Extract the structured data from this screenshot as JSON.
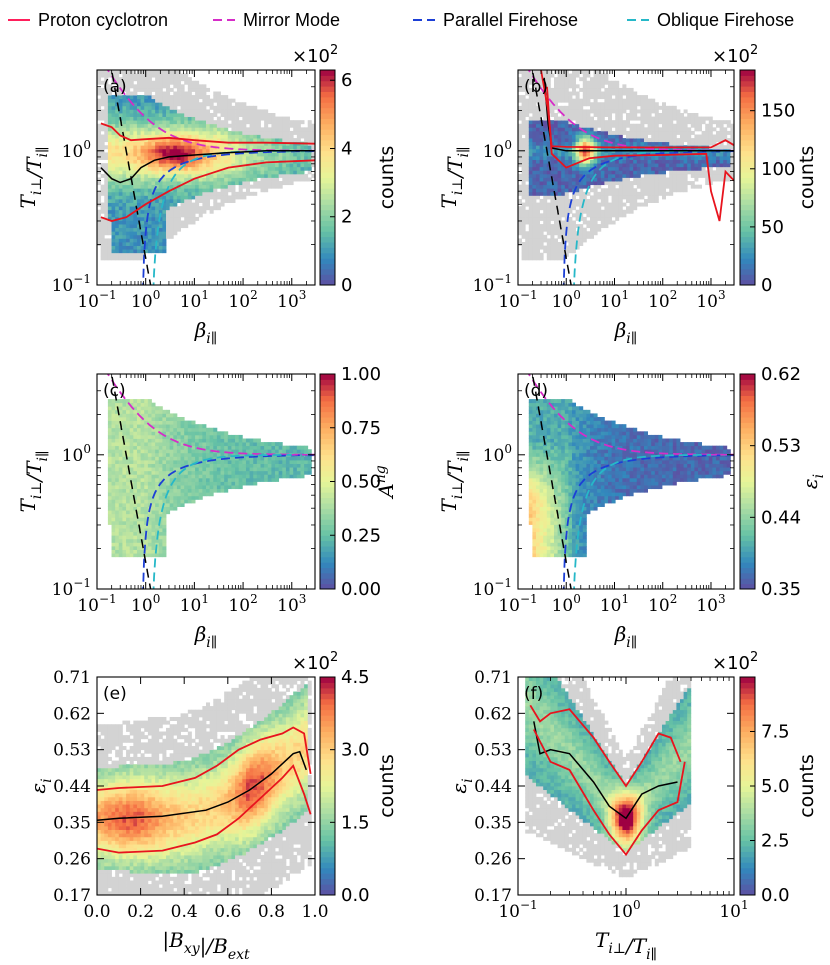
{
  "legend": [
    {
      "label": "Proton cyclotron",
      "color": "#ff1f5b"
    },
    {
      "label": "Mirror Mode",
      "color": "#d62cc8"
    },
    {
      "label": "Parallel Firehose",
      "color": "#1c3fd6"
    },
    {
      "label": "Oblique Firehose",
      "color": "#26b8c8"
    }
  ],
  "colors": {
    "median": "#000000",
    "percentile": "#e8141e",
    "background": "#d3d3d3"
  },
  "chart_data": [
    {
      "panel": "(a)",
      "type": "heatmap",
      "xscale": "log",
      "yscale": "log",
      "xlim": [
        0.1,
        3000
      ],
      "ylim": [
        0.1,
        4
      ],
      "xticks": [
        {
          "v": 0.1,
          "t": "10^-1"
        },
        {
          "v": 1,
          "t": "10^0"
        },
        {
          "v": 10,
          "t": "10^1"
        },
        {
          "v": 100,
          "t": "10^2"
        },
        {
          "v": 1000,
          "t": "10^3"
        }
      ],
      "yticks": [
        {
          "v": 0.1,
          "t": "10^-1"
        },
        {
          "v": 1,
          "t": "10^0"
        }
      ],
      "xlabel": "β_i∥",
      "ylabel": "T_i⊥/T_i∥",
      "cmap": "spectral",
      "cbar_label": "counts",
      "cbar_range": [
        0,
        6.3
      ],
      "cbar_ticks": [
        "0",
        "2",
        "4",
        "6"
      ],
      "cbar_mult": "×10²",
      "lines": [
        {
          "kind": "median",
          "pts": [
            [
              0.12,
              0.75
            ],
            [
              0.2,
              0.62
            ],
            [
              0.3,
              0.58
            ],
            [
              0.5,
              0.62
            ],
            [
              0.8,
              0.75
            ],
            [
              1.5,
              0.85
            ],
            [
              3,
              0.9
            ],
            [
              10,
              0.93
            ],
            [
              50,
              0.97
            ],
            [
              300,
              1.0
            ],
            [
              3000,
              1.0
            ]
          ]
        },
        {
          "kind": "percentile",
          "pts": [
            [
              0.12,
              1.6
            ],
            [
              0.2,
              1.5
            ],
            [
              0.3,
              1.3
            ],
            [
              0.5,
              1.2
            ],
            [
              1,
              1.22
            ],
            [
              3,
              1.25
            ],
            [
              10,
              1.2
            ],
            [
              50,
              1.15
            ],
            [
              300,
              1.15
            ],
            [
              3000,
              1.13
            ]
          ]
        },
        {
          "kind": "percentile",
          "pts": [
            [
              0.12,
              0.32
            ],
            [
              0.2,
              0.3
            ],
            [
              0.4,
              0.32
            ],
            [
              1,
              0.4
            ],
            [
              3,
              0.5
            ],
            [
              10,
              0.62
            ],
            [
              50,
              0.75
            ],
            [
              300,
              0.82
            ],
            [
              3000,
              0.85
            ]
          ]
        }
      ]
    },
    {
      "panel": "(b)",
      "type": "heatmap",
      "xscale": "log",
      "yscale": "log",
      "xlim": [
        0.1,
        3000
      ],
      "ylim": [
        0.1,
        4
      ],
      "xticks": [
        {
          "v": 0.1,
          "t": "10^-1"
        },
        {
          "v": 1,
          "t": "10^0"
        },
        {
          "v": 10,
          "t": "10^1"
        },
        {
          "v": 100,
          "t": "10^2"
        },
        {
          "v": 1000,
          "t": "10^3"
        }
      ],
      "yticks": [
        {
          "v": 0.1,
          "t": "10^-1"
        },
        {
          "v": 1,
          "t": "10^0"
        }
      ],
      "xlabel": "β_i∥",
      "ylabel": "T_i⊥/T_i∥",
      "cmap": "spectral",
      "cbar_label": "counts",
      "cbar_range": [
        0,
        185
      ],
      "cbar_ticks": [
        "0",
        "50",
        "100",
        "150"
      ],
      "cbar_mult": "×10²",
      "lines": [
        {
          "kind": "median",
          "pts": [
            [
              0.35,
              3.5
            ],
            [
              0.42,
              1.6
            ],
            [
              0.5,
              1.05
            ],
            [
              1,
              1.0
            ],
            [
              10,
              1.0
            ],
            [
              100,
              1.0
            ],
            [
              1000,
              1.0
            ],
            [
              3000,
              1.0
            ]
          ]
        },
        {
          "kind": "percentile",
          "pts": [
            [
              0.3,
              4.0
            ],
            [
              0.42,
              2.0
            ],
            [
              0.5,
              1.08
            ],
            [
              1,
              1.07
            ],
            [
              10,
              1.06
            ],
            [
              100,
              1.06
            ],
            [
              1000,
              1.06
            ],
            [
              2000,
              1.2
            ],
            [
              3000,
              1.1
            ]
          ]
        },
        {
          "kind": "percentile",
          "pts": [
            [
              0.4,
              3.0
            ],
            [
              0.5,
              0.95
            ],
            [
              1,
              0.75
            ],
            [
              3,
              0.88
            ],
            [
              10,
              0.92
            ],
            [
              100,
              0.93
            ],
            [
              800,
              0.95
            ],
            [
              1000,
              0.5
            ],
            [
              1500,
              0.3
            ],
            [
              2000,
              0.7
            ],
            [
              3000,
              0.6
            ]
          ]
        }
      ]
    },
    {
      "panel": "(c)",
      "type": "heatmap",
      "xscale": "log",
      "yscale": "log",
      "xlim": [
        0.1,
        3000
      ],
      "ylim": [
        0.1,
        4
      ],
      "xticks": [
        {
          "v": 0.1,
          "t": "10^-1"
        },
        {
          "v": 1,
          "t": "10^0"
        },
        {
          "v": 10,
          "t": "10^1"
        },
        {
          "v": 100,
          "t": "10^2"
        },
        {
          "v": 1000,
          "t": "10^3"
        }
      ],
      "yticks": [
        {
          "v": 0.1,
          "t": "10^-1"
        },
        {
          "v": 1,
          "t": "10^0"
        }
      ],
      "xlabel": "β_i∥",
      "ylabel": "T_i⊥/T_i∥",
      "cmap": "spectral",
      "cbar_label": "A^ng",
      "cbar_range": [
        0,
        1
      ],
      "cbar_ticks": [
        "0.00",
        "0.25",
        "0.50",
        "0.75",
        "1.00"
      ],
      "cbar_mult": "",
      "lines": []
    },
    {
      "panel": "(d)",
      "type": "heatmap",
      "xscale": "log",
      "yscale": "log",
      "xlim": [
        0.1,
        3000
      ],
      "ylim": [
        0.1,
        4
      ],
      "xticks": [
        {
          "v": 0.1,
          "t": "10^-1"
        },
        {
          "v": 1,
          "t": "10^0"
        },
        {
          "v": 10,
          "t": "10^1"
        },
        {
          "v": 100,
          "t": "10^2"
        },
        {
          "v": 1000,
          "t": "10^3"
        }
      ],
      "yticks": [
        {
          "v": 0.1,
          "t": "10^-1"
        },
        {
          "v": 1,
          "t": "10^0"
        }
      ],
      "xlabel": "β_i∥",
      "ylabel": "T_i⊥/T_i∥",
      "cmap": "spectral",
      "cbar_label": "ε_i",
      "cbar_range": [
        0.35,
        0.62
      ],
      "cbar_ticks": [
        "0.35",
        "0.44",
        "0.53",
        "0.62"
      ],
      "cbar_mult": "",
      "lines": []
    },
    {
      "panel": "(e)",
      "type": "heatmap",
      "xscale": "linear",
      "yscale": "linear",
      "xlim": [
        0,
        1
      ],
      "ylim": [
        0.17,
        0.71
      ],
      "xticks": [
        {
          "v": 0,
          "t": "0.0"
        },
        {
          "v": 0.2,
          "t": "0.2"
        },
        {
          "v": 0.4,
          "t": "0.4"
        },
        {
          "v": 0.6,
          "t": "0.6"
        },
        {
          "v": 0.8,
          "t": "0.8"
        },
        {
          "v": 1,
          "t": "1.0"
        }
      ],
      "yticks": [
        {
          "v": 0.17,
          "t": "0.17"
        },
        {
          "v": 0.26,
          "t": "0.26"
        },
        {
          "v": 0.35,
          "t": "0.35"
        },
        {
          "v": 0.44,
          "t": "0.44"
        },
        {
          "v": 0.53,
          "t": "0.53"
        },
        {
          "v": 0.62,
          "t": "0.62"
        },
        {
          "v": 0.71,
          "t": "0.71"
        }
      ],
      "xlabel": "|B_xy|/B_ext",
      "ylabel": "ε_i",
      "cmap": "spectral",
      "cbar_label": "counts",
      "cbar_range": [
        0,
        4.5
      ],
      "cbar_ticks": [
        "0.0",
        "1.5",
        "3.0",
        "4.5"
      ],
      "cbar_mult": "×10²",
      "lines": [
        {
          "kind": "median",
          "pts": [
            [
              0,
              0.355
            ],
            [
              0.1,
              0.36
            ],
            [
              0.3,
              0.365
            ],
            [
              0.5,
              0.38
            ],
            [
              0.6,
              0.4
            ],
            [
              0.7,
              0.43
            ],
            [
              0.8,
              0.47
            ],
            [
              0.9,
              0.52
            ],
            [
              0.93,
              0.525
            ],
            [
              0.96,
              0.48
            ]
          ]
        },
        {
          "kind": "percentile",
          "pts": [
            [
              0,
              0.43
            ],
            [
              0.1,
              0.435
            ],
            [
              0.3,
              0.44
            ],
            [
              0.45,
              0.46
            ],
            [
              0.55,
              0.49
            ],
            [
              0.65,
              0.53
            ],
            [
              0.75,
              0.555
            ],
            [
              0.85,
              0.57
            ],
            [
              0.9,
              0.585
            ],
            [
              0.95,
              0.57
            ],
            [
              0.98,
              0.47
            ]
          ]
        },
        {
          "kind": "percentile",
          "pts": [
            [
              0,
              0.285
            ],
            [
              0.1,
              0.275
            ],
            [
              0.3,
              0.28
            ],
            [
              0.45,
              0.3
            ],
            [
              0.55,
              0.32
            ],
            [
              0.65,
              0.36
            ],
            [
              0.75,
              0.41
            ],
            [
              0.85,
              0.46
            ],
            [
              0.9,
              0.49
            ],
            [
              0.95,
              0.42
            ],
            [
              0.98,
              0.37
            ]
          ]
        }
      ]
    },
    {
      "panel": "(f)",
      "type": "heatmap",
      "xscale": "log",
      "yscale": "linear",
      "xlim": [
        0.1,
        10
      ],
      "ylim": [
        0.17,
        0.71
      ],
      "xticks": [
        {
          "v": 0.1,
          "t": "10^-1"
        },
        {
          "v": 1,
          "t": "10^0"
        },
        {
          "v": 10,
          "t": "10^1"
        }
      ],
      "yticks": [
        {
          "v": 0.17,
          "t": "0.17"
        },
        {
          "v": 0.26,
          "t": "0.26"
        },
        {
          "v": 0.35,
          "t": "0.35"
        },
        {
          "v": 0.44,
          "t": "0.44"
        },
        {
          "v": 0.53,
          "t": "0.53"
        },
        {
          "v": 0.62,
          "t": "0.62"
        },
        {
          "v": 0.71,
          "t": "0.71"
        }
      ],
      "xlabel": "T_i⊥/T_i∥",
      "ylabel": "ε_i",
      "cmap": "spectral",
      "cbar_label": "counts",
      "cbar_range": [
        0,
        10
      ],
      "cbar_ticks": [
        "0.0",
        "2.5",
        "5.0",
        "7.5"
      ],
      "cbar_mult": "×10²",
      "lines": [
        {
          "kind": "median",
          "pts": [
            [
              0.14,
              0.6
            ],
            [
              0.16,
              0.52
            ],
            [
              0.2,
              0.53
            ],
            [
              0.3,
              0.52
            ],
            [
              0.5,
              0.45
            ],
            [
              0.7,
              0.39
            ],
            [
              1.0,
              0.36
            ],
            [
              1.4,
              0.42
            ],
            [
              2,
              0.44
            ],
            [
              3,
              0.45
            ]
          ]
        },
        {
          "kind": "percentile",
          "pts": [
            [
              0.13,
              0.64
            ],
            [
              0.16,
              0.6
            ],
            [
              0.2,
              0.62
            ],
            [
              0.3,
              0.63
            ],
            [
              0.5,
              0.56
            ],
            [
              0.7,
              0.5
            ],
            [
              1.0,
              0.44
            ],
            [
              1.4,
              0.5
            ],
            [
              2,
              0.57
            ],
            [
              2.6,
              0.56
            ],
            [
              3.2,
              0.5
            ]
          ]
        },
        {
          "kind": "percentile",
          "pts": [
            [
              0.14,
              0.58
            ],
            [
              0.2,
              0.5
            ],
            [
              0.3,
              0.48
            ],
            [
              0.5,
              0.38
            ],
            [
              0.7,
              0.32
            ],
            [
              1.0,
              0.27
            ],
            [
              1.4,
              0.33
            ],
            [
              2,
              0.38
            ],
            [
              3,
              0.4
            ],
            [
              3.5,
              0.5
            ]
          ]
        }
      ]
    }
  ]
}
